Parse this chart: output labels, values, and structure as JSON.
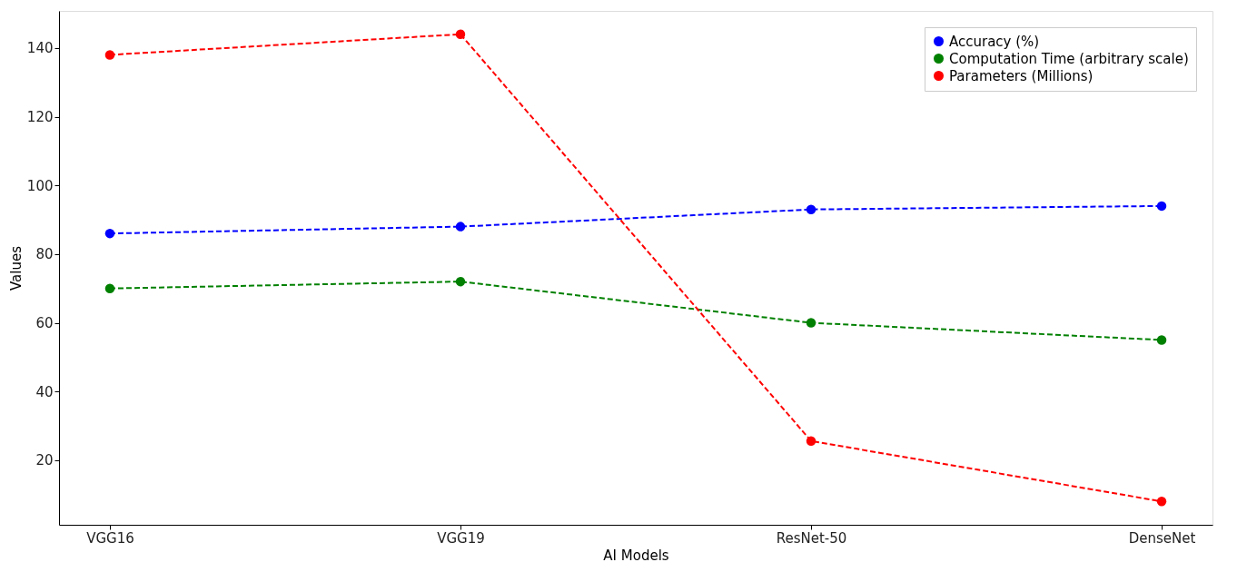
{
  "chart_data": {
    "type": "line",
    "xlabel": "AI Models",
    "ylabel": "Values",
    "categories": [
      "VGG16",
      "VGG19",
      "ResNet-50",
      "DenseNet"
    ],
    "series": [
      {
        "name": "Accuracy (%)",
        "color": "#0000ff",
        "values": [
          86,
          88,
          93,
          94
        ]
      },
      {
        "name": "Computation Time (arbitrary scale)",
        "color": "#008000",
        "values": [
          70,
          72,
          60,
          55
        ]
      },
      {
        "name": "Parameters (Millions)",
        "color": "#ff0000",
        "values": [
          138,
          144,
          25.6,
          8
        ]
      }
    ],
    "ylim": [
      1.2,
      150.8
    ],
    "yticks": [
      20,
      40,
      60,
      80,
      100,
      120,
      140
    ],
    "grid": false,
    "legend": "top right",
    "marker": "circle",
    "line_style": "dashed"
  }
}
